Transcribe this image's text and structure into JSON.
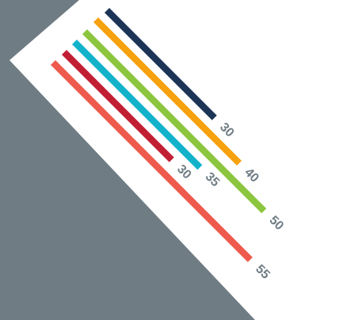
{
  "chart_data": {
    "type": "bar",
    "orientation": "diagonal",
    "series": [
      {
        "value": 30,
        "label": "30",
        "color": "#1c3557"
      },
      {
        "value": 40,
        "label": "40",
        "color": "#f6a10e"
      },
      {
        "value": 50,
        "label": "50",
        "color": "#8cc63e"
      },
      {
        "value": 35,
        "label": "35",
        "color": "#12b2cb"
      },
      {
        "value": 30,
        "label": "30",
        "color": "#c21f35"
      },
      {
        "value": 55,
        "label": "55",
        "color": "#ee5a4c"
      }
    ],
    "legend": "none",
    "grid": false
  },
  "colors": {
    "background": "#6f7c84",
    "panel": "#ffffff",
    "label": "#6f7c84"
  }
}
